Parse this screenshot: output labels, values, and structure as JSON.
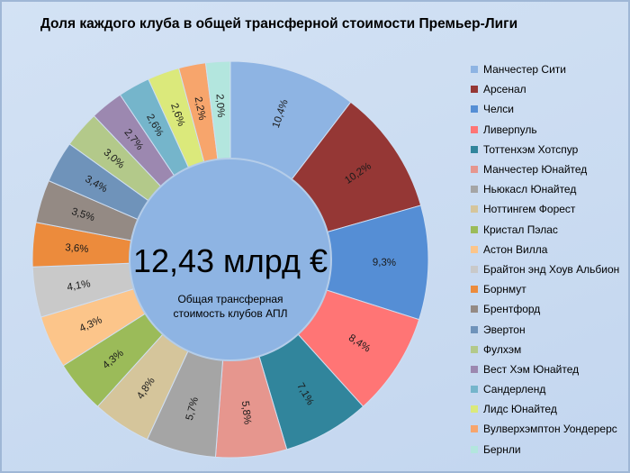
{
  "chart_data": {
    "type": "pie",
    "title": "Доля каждого клуба в общей трансферной стоимости Премьер-Лиги",
    "center_value": "12,43 млрд €",
    "center_caption": [
      "Общая трансферная",
      "стоимость клубов АПЛ"
    ],
    "legend_position": "right",
    "unit": "%",
    "slices": [
      {
        "name": "Манчестер Сити",
        "value": 10.4,
        "label": "10,4%",
        "color": "#8eb4e3"
      },
      {
        "name": "Арсенал",
        "value": 10.2,
        "label": "10,2%",
        "color": "#953735"
      },
      {
        "name": "Челси",
        "value": 9.3,
        "label": "9,3%",
        "color": "#558ed5"
      },
      {
        "name": "Ливерпуль",
        "value": 8.4,
        "label": "8,4%",
        "color": "#ff7575"
      },
      {
        "name": "Тоттенхэм Хотспур",
        "value": 7.1,
        "label": "7,1%",
        "color": "#31859c"
      },
      {
        "name": "Манчестер Юнайтед",
        "value": 5.8,
        "label": "5,8%",
        "color": "#e6968e"
      },
      {
        "name": "Ньюкасл Юнайтед",
        "value": 5.7,
        "label": "5,7%",
        "color": "#a5a5a5"
      },
      {
        "name": "Ноттингем Форест",
        "value": 4.8,
        "label": "4,8%",
        "color": "#d5c59b"
      },
      {
        "name": "Кристал Пэлас",
        "value": 4.3,
        "label": "4,3%",
        "color": "#9bbb59"
      },
      {
        "name": "Астон Вилла",
        "value": 4.3,
        "label": "4,3%",
        "color": "#fcc58a"
      },
      {
        "name": "Брайтон энд Хоув Альбион",
        "value": 4.1,
        "label": "4,1%",
        "color": "#c9c9c9"
      },
      {
        "name": "Борнмут",
        "value": 3.6,
        "label": "3,6%",
        "color": "#ec8b3c"
      },
      {
        "name": "Брентфорд",
        "value": 3.5,
        "label": "3,5%",
        "color": "#948a84"
      },
      {
        "name": "Эвертон",
        "value": 3.4,
        "label": "3,4%",
        "color": "#6f93ba"
      },
      {
        "name": "Фулхэм",
        "value": 3.0,
        "label": "3,0%",
        "color": "#b3c98a"
      },
      {
        "name": "Вест Хэм Юнайтед",
        "value": 2.7,
        "label": "2,7%",
        "color": "#9c88b0"
      },
      {
        "name": "Сандерленд",
        "value": 2.6,
        "label": "2,6%",
        "color": "#75b5cb"
      },
      {
        "name": "Лидс Юнайтед",
        "value": 2.6,
        "label": "2,6%",
        "color": "#dbe97b"
      },
      {
        "name": "Вулверхэмптон Уондерерс",
        "value": 2.2,
        "label": "2,2%",
        "color": "#f7a56c"
      },
      {
        "name": "Бернли",
        "value": 2.0,
        "label": "2,0%",
        "color": "#b3e6de"
      }
    ]
  }
}
